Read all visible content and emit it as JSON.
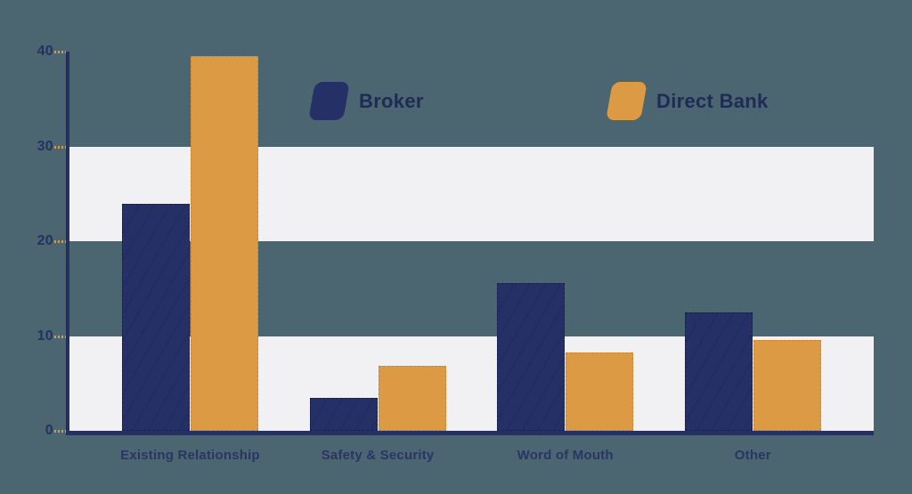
{
  "chart_data": {
    "type": "bar",
    "title": "",
    "xlabel": "",
    "ylabel": "",
    "categories": [
      "Existing Relationship",
      "Safety & Security",
      "Word of Mouth",
      "Other"
    ],
    "series": [
      {
        "name": "Broker",
        "color": "#253066",
        "values": [
          23.9,
          3.5,
          15.6,
          12.5
        ]
      },
      {
        "name": "Direct Bank",
        "color": "#dd9a45",
        "values": [
          39.5,
          6.9,
          8.3,
          9.6
        ]
      }
    ],
    "ylim": [
      0,
      40
    ],
    "yticks": [
      0,
      10,
      20,
      30,
      40
    ],
    "grid": "alternating horizontal shaded bands (0-10 and 20-30)",
    "legend_position": "top-center"
  },
  "legend": {
    "items": [
      {
        "label": "Broker",
        "color": "#253066"
      },
      {
        "label": "Direct Bank",
        "color": "#dd9a45"
      }
    ]
  },
  "colors": {
    "background": "#4b6670",
    "band": "#f1f1f3",
    "axis": "#243161",
    "tick_dash": "#dd9a45",
    "text": "#243161"
  }
}
